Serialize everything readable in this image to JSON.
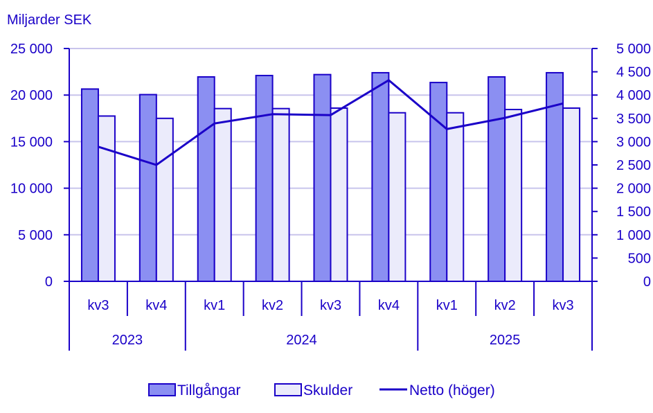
{
  "colors": {
    "axis": "#1a00c8",
    "text": "#1a00c8",
    "grid": "#c8c4ec",
    "tillgangar_fill": "#8b8ff2",
    "skulder_fill": "#ebebfb",
    "line": "#1a00c8"
  },
  "chart_data": {
    "type": "bar+line",
    "title": "",
    "ylabel": "Miljarder SEK",
    "ylabel_right": "",
    "xlabel": "",
    "ylim": [
      0,
      25000
    ],
    "ylim_right": [
      0,
      5000
    ],
    "yticks": [
      0,
      5000,
      10000,
      15000,
      20000,
      25000
    ],
    "ytick_labels": [
      "0",
      "5 000",
      "10 000",
      "15 000",
      "20 000",
      "25 000"
    ],
    "yticks_right": [
      0,
      500,
      1000,
      1500,
      2000,
      2500,
      3000,
      3500,
      4000,
      4500,
      5000
    ],
    "ytick_labels_right": [
      "0",
      "500",
      "1 000",
      "1 500",
      "2 000",
      "2 500",
      "3 000",
      "3 500",
      "4 000",
      "4 500",
      "5 000"
    ],
    "grid": true,
    "categories": [
      "kv3",
      "kv4",
      "kv1",
      "kv2",
      "kv3",
      "kv4",
      "kv1",
      "kv2",
      "kv3"
    ],
    "groups": [
      {
        "label": "2023",
        "count": 2
      },
      {
        "label": "2024",
        "count": 4
      },
      {
        "label": "2025",
        "count": 3
      }
    ],
    "series": [
      {
        "name": "Tillgångar",
        "type": "bar",
        "axis": "left",
        "values": [
          20650,
          20050,
          21950,
          22100,
          22200,
          22400,
          21350,
          21950,
          22400
        ]
      },
      {
        "name": "Skulder",
        "type": "bar",
        "axis": "left",
        "values": [
          17750,
          17500,
          18550,
          18550,
          18600,
          18100,
          18100,
          18450,
          18600
        ]
      },
      {
        "name": "Netto (höger)",
        "type": "line",
        "axis": "right",
        "values": [
          2890,
          2500,
          3390,
          3590,
          3570,
          4320,
          3270,
          3510,
          3820
        ]
      }
    ],
    "legend": [
      "Tillgångar",
      "Skulder",
      "Netto (höger)"
    ],
    "legend_position": "bottom"
  }
}
